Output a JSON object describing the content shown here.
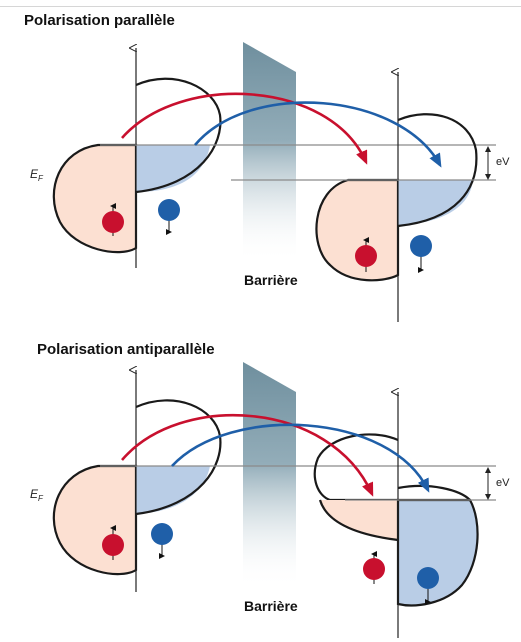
{
  "panels": [
    {
      "title": "Polarisation parallèle",
      "barrier_label": "Barrière",
      "ef_main": "E",
      "ef_sub": "F",
      "ev_label": "eV"
    },
    {
      "title": "Polarisation antiparallèle",
      "barrier_label": "Barrière",
      "ef_main": "E",
      "ef_sub": "F",
      "ev_label": "eV"
    }
  ],
  "colors": {
    "majority_fill": "#fce0d2",
    "minority_fill": "#b9cde6",
    "spin_up_red": "#c8102e",
    "spin_down_blue": "#1f5fa8",
    "barrier": "#7e9dab",
    "outline": "#1a1a1a",
    "fermi_line": "#8a8a8a"
  }
}
